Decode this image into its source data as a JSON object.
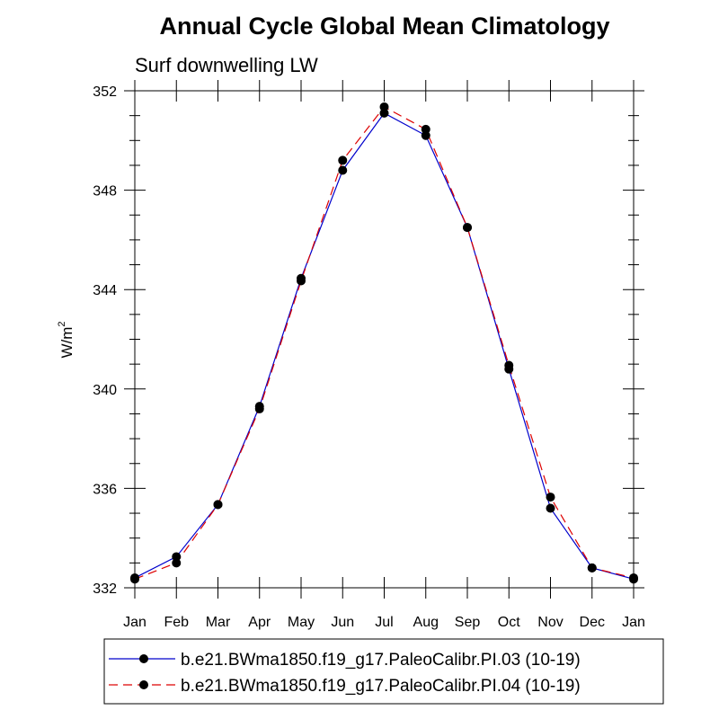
{
  "chart_data": {
    "type": "line",
    "title": "Annual Cycle Global Mean Climatology",
    "subtitle": "Surf downwelling LW",
    "ylabel_base": "W/m",
    "ylabel_sup": "2",
    "xlabel": "",
    "categories": [
      "Jan",
      "Feb",
      "Mar",
      "Apr",
      "May",
      "Jun",
      "Jul",
      "Aug",
      "Sep",
      "Oct",
      "Nov",
      "Dec",
      "Jan"
    ],
    "ylim": [
      332,
      352
    ],
    "yticks": [
      "332",
      "336",
      "340",
      "344",
      "348",
      "352"
    ],
    "grid": false,
    "legend_position": "bottom",
    "series": [
      {
        "name": "b.e21.BWma1850.f19_g17.PaleoCalibr.PI.03 (10-19)",
        "color": "#0000cc",
        "dash": "solid",
        "values": [
          332.4,
          333.25,
          335.35,
          339.3,
          344.45,
          348.8,
          351.1,
          350.2,
          346.5,
          340.8,
          335.2,
          332.8,
          332.35
        ]
      },
      {
        "name": "b.e21.BWma1850.f19_g17.PaleoCalibr.PI.04 (10-19)",
        "color": "#dd0000",
        "dash": "dashed",
        "values": [
          332.35,
          333.0,
          335.35,
          339.2,
          344.35,
          349.2,
          351.35,
          350.45,
          346.5,
          340.95,
          335.65,
          332.8,
          332.4
        ]
      }
    ]
  }
}
